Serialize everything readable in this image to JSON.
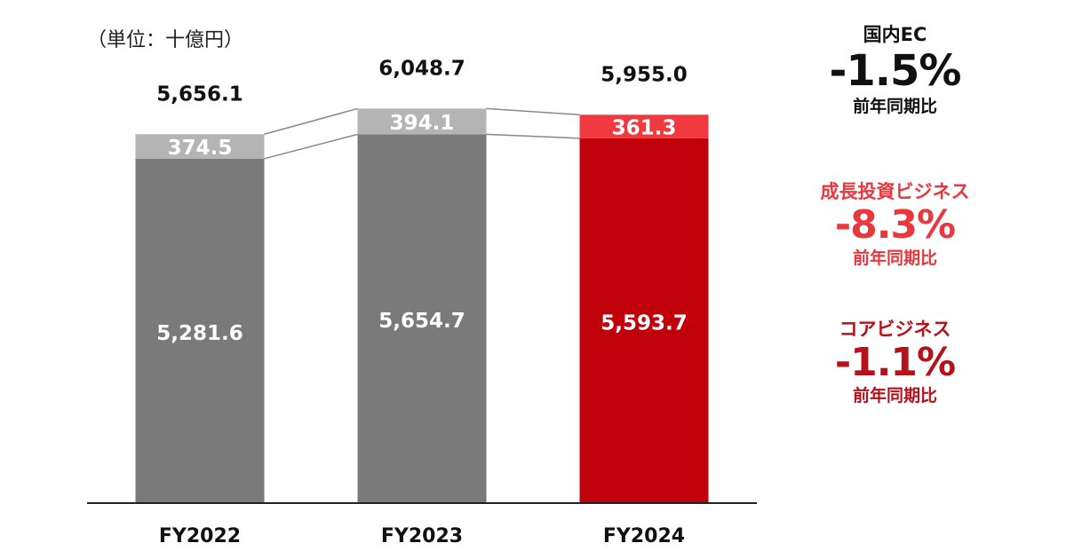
{
  "chart_data": {
    "type": "bar",
    "stacked": true,
    "unit_label": "（単位：十億円）",
    "categories": [
      "FY2022",
      "FY2023",
      "FY2024"
    ],
    "series": [
      {
        "values": [
          5281.6,
          5654.7,
          5593.7
        ]
      },
      {
        "values": [
          374.5,
          394.1,
          361.3
        ]
      }
    ],
    "totals": [
      "5,656.1",
      "6,048.7",
      "5,955.0"
    ],
    "value_labels": {
      "bottom": [
        "5,281.6",
        "5,654.7",
        "5,593.7"
      ],
      "top": [
        "374.5",
        "394.1",
        "361.3"
      ]
    },
    "ylim": [
      0,
      6500
    ],
    "grid": false,
    "colors": {
      "bottom": [
        "#7a7a7a",
        "#7a7a7a",
        "#c0000b"
      ],
      "top": [
        "#b4b4b4",
        "#b4b4b4",
        "#f03a3f"
      ],
      "baseline": "#222222",
      "connector": "#888888"
    }
  },
  "kpis": {
    "domestic_ec": {
      "label": "国内EC",
      "value": "-1.5%",
      "sub": "前年同期比"
    },
    "growth_business": {
      "label": "成長投資ビジネス",
      "value": "-8.3%",
      "sub": "前年同期比"
    },
    "core_business": {
      "label": "コアビジネス",
      "value": "-1.1%",
      "sub": "前年同期比"
    }
  }
}
